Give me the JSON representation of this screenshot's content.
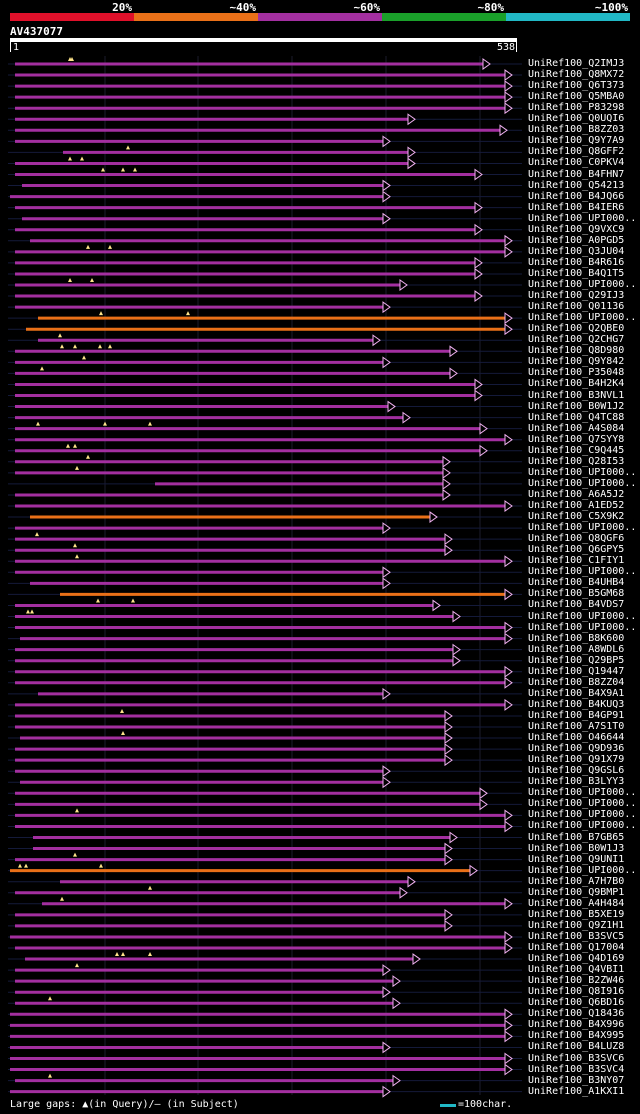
{
  "legend": {
    "labels": [
      "20%",
      "~40%",
      "~60%",
      "~80%",
      "~100%"
    ],
    "colors": [
      "#e0102a",
      "#e97018",
      "#a32fa0",
      "#1aa02a",
      "#21b8c5"
    ]
  },
  "query": {
    "name": "AV437077",
    "start": "1",
    "end": "538"
  },
  "hits": [
    {
      "id": "UniRef100_Q2IMJ3",
      "color": "purple",
      "start": 15,
      "end": 490,
      "gaps": [
        70,
        72
      ]
    },
    {
      "id": "UniRef100_Q8MX72",
      "color": "purple",
      "start": 15,
      "end": 512,
      "gaps": []
    },
    {
      "id": "UniRef100_Q6T373",
      "color": "purple",
      "start": 15,
      "end": 512,
      "gaps": []
    },
    {
      "id": "UniRef100_Q5MBA0",
      "color": "purple",
      "start": 15,
      "end": 512,
      "gaps": []
    },
    {
      "id": "UniRef100_P83298",
      "color": "purple",
      "start": 15,
      "end": 512,
      "gaps": []
    },
    {
      "id": "UniRef100_Q0UQI6",
      "color": "purple",
      "start": 15,
      "end": 415,
      "gaps": []
    },
    {
      "id": "UniRef100_B8ZZ03",
      "color": "purple",
      "start": 15,
      "end": 507,
      "gaps": []
    },
    {
      "id": "UniRef100_Q9Y7A9",
      "color": "purple",
      "start": 15,
      "end": 390,
      "gaps": []
    },
    {
      "id": "UniRef100_Q8GFF2",
      "color": "purple",
      "start": 63,
      "end": 415,
      "gaps": [
        128
      ]
    },
    {
      "id": "UniRef100_C0PKV4",
      "color": "purple",
      "start": 15,
      "end": 415,
      "gaps": [
        70,
        82
      ]
    },
    {
      "id": "UniRef100_B4FHN7",
      "color": "purple",
      "start": 15,
      "end": 482,
      "gaps": [
        103,
        123,
        135
      ]
    },
    {
      "id": "UniRef100_Q54213",
      "color": "purple",
      "start": 22,
      "end": 390,
      "gaps": []
    },
    {
      "id": "UniRef100_B4JQ66",
      "color": "purple",
      "start": 10,
      "end": 390,
      "gaps": []
    },
    {
      "id": "UniRef100_B4IER6",
      "color": "purple",
      "start": 15,
      "end": 482,
      "gaps": []
    },
    {
      "id": "UniRef100_UPI000..",
      "color": "purple",
      "start": 22,
      "end": 390,
      "gaps": []
    },
    {
      "id": "UniRef100_Q9VXC9",
      "color": "purple",
      "start": 15,
      "end": 482,
      "gaps": []
    },
    {
      "id": "UniRef100_A0PGD5",
      "color": "purple",
      "start": 30,
      "end": 512,
      "gaps": []
    },
    {
      "id": "UniRef100_Q3JU04",
      "color": "purple",
      "start": 15,
      "end": 512,
      "gaps": [
        88,
        110
      ]
    },
    {
      "id": "UniRef100_B4R616",
      "color": "purple",
      "start": 15,
      "end": 482,
      "gaps": []
    },
    {
      "id": "UniRef100_B4Q1T5",
      "color": "purple",
      "start": 15,
      "end": 482,
      "gaps": []
    },
    {
      "id": "UniRef100_UPI000..",
      "color": "purple",
      "start": 15,
      "end": 407,
      "gaps": [
        70,
        92
      ]
    },
    {
      "id": "UniRef100_Q29IJ3",
      "color": "purple",
      "start": 15,
      "end": 482,
      "gaps": []
    },
    {
      "id": "UniRef100_Q01136",
      "color": "purple",
      "start": 15,
      "end": 390,
      "gaps": []
    },
    {
      "id": "UniRef100_UPI000..",
      "color": "orange",
      "start": 38,
      "end": 512,
      "gaps": [
        101,
        188
      ]
    },
    {
      "id": "UniRef100_Q2QBE0",
      "color": "orange",
      "start": 26,
      "end": 512,
      "gaps": []
    },
    {
      "id": "UniRef100_Q2CHG7",
      "color": "purple",
      "start": 38,
      "end": 380,
      "gaps": [
        60
      ]
    },
    {
      "id": "UniRef100_Q8D980",
      "color": "purple",
      "start": 15,
      "end": 457,
      "gaps": [
        62,
        75,
        100,
        110
      ]
    },
    {
      "id": "UniRef100_Q9Y842",
      "color": "purple",
      "start": 15,
      "end": 390,
      "gaps": [
        84
      ]
    },
    {
      "id": "UniRef100_P35048",
      "color": "purple",
      "start": 15,
      "end": 457,
      "gaps": [
        42
      ]
    },
    {
      "id": "UniRef100_B4H2K4",
      "color": "purple",
      "start": 15,
      "end": 482,
      "gaps": []
    },
    {
      "id": "UniRef100_B3NVL1",
      "color": "purple",
      "start": 15,
      "end": 482,
      "gaps": []
    },
    {
      "id": "UniRef100_B0W1J2",
      "color": "purple",
      "start": 15,
      "end": 395,
      "gaps": []
    },
    {
      "id": "UniRef100_Q4TC88",
      "color": "purple",
      "start": 15,
      "end": 410,
      "gaps": []
    },
    {
      "id": "UniRef100_A4S084",
      "color": "purple",
      "start": 15,
      "end": 487,
      "gaps": [
        38,
        105,
        150
      ]
    },
    {
      "id": "UniRef100_Q7SYY8",
      "color": "purple",
      "start": 15,
      "end": 512,
      "gaps": []
    },
    {
      "id": "UniRef100_C9Q445",
      "color": "purple",
      "start": 15,
      "end": 487,
      "gaps": [
        68,
        75
      ]
    },
    {
      "id": "UniRef100_Q28I53",
      "color": "purple",
      "start": 15,
      "end": 450,
      "gaps": [
        88
      ]
    },
    {
      "id": "UniRef100_UPI000..",
      "color": "purple",
      "start": 15,
      "end": 450,
      "gaps": [
        77
      ]
    },
    {
      "id": "UniRef100_UPI000..",
      "color": "purple",
      "start": 155,
      "end": 450,
      "gaps": []
    },
    {
      "id": "UniRef100_A6A5J2",
      "color": "purple",
      "start": 15,
      "end": 450,
      "gaps": []
    },
    {
      "id": "UniRef100_A1ED52",
      "color": "purple",
      "start": 15,
      "end": 512,
      "gaps": []
    },
    {
      "id": "UniRef100_C5X9K2",
      "color": "orange",
      "start": 30,
      "end": 437,
      "gaps": []
    },
    {
      "id": "UniRef100_UPI000..",
      "color": "purple",
      "start": 15,
      "end": 390,
      "gaps": []
    },
    {
      "id": "UniRef100_Q8QGF6",
      "color": "purple",
      "start": 15,
      "end": 452,
      "gaps": [
        37
      ]
    },
    {
      "id": "UniRef100_Q6GPY5",
      "color": "purple",
      "start": 15,
      "end": 452,
      "gaps": [
        75
      ]
    },
    {
      "id": "UniRef100_C1FIY1",
      "color": "purple",
      "start": 15,
      "end": 512,
      "gaps": [
        77
      ]
    },
    {
      "id": "UniRef100_UPI000..",
      "color": "purple",
      "start": 15,
      "end": 390,
      "gaps": []
    },
    {
      "id": "UniRef100_B4UHB4",
      "color": "purple",
      "start": 30,
      "end": 390,
      "gaps": []
    },
    {
      "id": "UniRef100_B5GM68",
      "color": "orange",
      "start": 60,
      "end": 512,
      "gaps": []
    },
    {
      "id": "UniRef100_B4VDS7",
      "color": "purple",
      "start": 15,
      "end": 440,
      "gaps": [
        98,
        133
      ]
    },
    {
      "id": "UniRef100_UPI000..",
      "color": "purple",
      "start": 15,
      "end": 460,
      "gaps": [
        28,
        32
      ]
    },
    {
      "id": "UniRef100_UPI000..",
      "color": "purple",
      "start": 15,
      "end": 512,
      "gaps": []
    },
    {
      "id": "UniRef100_B8K600",
      "color": "purple",
      "start": 20,
      "end": 512,
      "gaps": []
    },
    {
      "id": "UniRef100_A8WDL6",
      "color": "purple",
      "start": 15,
      "end": 460,
      "gaps": []
    },
    {
      "id": "UniRef100_Q29BP5",
      "color": "purple",
      "start": 15,
      "end": 460,
      "gaps": []
    },
    {
      "id": "UniRef100_Q19447",
      "color": "purple",
      "start": 15,
      "end": 512,
      "gaps": []
    },
    {
      "id": "UniRef100_B8ZZ04",
      "color": "purple",
      "start": 15,
      "end": 512,
      "gaps": []
    },
    {
      "id": "UniRef100_B4X9A1",
      "color": "purple",
      "start": 38,
      "end": 390,
      "gaps": []
    },
    {
      "id": "UniRef100_B4KUQ3",
      "color": "purple",
      "start": 15,
      "end": 512,
      "gaps": []
    },
    {
      "id": "UniRef100_B4GP91",
      "color": "purple",
      "start": 15,
      "end": 452,
      "gaps": [
        122
      ]
    },
    {
      "id": "UniRef100_A7S1T0",
      "color": "purple",
      "start": 15,
      "end": 452,
      "gaps": []
    },
    {
      "id": "UniRef100_O46644",
      "color": "purple",
      "start": 20,
      "end": 452,
      "gaps": [
        123
      ]
    },
    {
      "id": "UniRef100_Q9D936",
      "color": "purple",
      "start": 15,
      "end": 452,
      "gaps": []
    },
    {
      "id": "UniRef100_Q91X79",
      "color": "purple",
      "start": 15,
      "end": 452,
      "gaps": []
    },
    {
      "id": "UniRef100_Q9GSL6",
      "color": "purple",
      "start": 15,
      "end": 390,
      "gaps": []
    },
    {
      "id": "UniRef100_B3LYY3",
      "color": "purple",
      "start": 20,
      "end": 390,
      "gaps": []
    },
    {
      "id": "UniRef100_UPI000..",
      "color": "purple",
      "start": 15,
      "end": 487,
      "gaps": []
    },
    {
      "id": "UniRef100_UPI000..",
      "color": "purple",
      "start": 15,
      "end": 487,
      "gaps": []
    },
    {
      "id": "UniRef100_UPI000..",
      "color": "purple",
      "start": 15,
      "end": 512,
      "gaps": [
        77
      ]
    },
    {
      "id": "UniRef100_UPI000..",
      "color": "purple",
      "start": 15,
      "end": 512,
      "gaps": []
    },
    {
      "id": "UniRef100_B7GB65",
      "color": "purple",
      "start": 33,
      "end": 457,
      "gaps": []
    },
    {
      "id": "UniRef100_B0W1J3",
      "color": "purple",
      "start": 33,
      "end": 452,
      "gaps": []
    },
    {
      "id": "UniRef100_Q9UNI1",
      "color": "purple",
      "start": 15,
      "end": 452,
      "gaps": [
        75
      ]
    },
    {
      "id": "UniRef100_UPI000..",
      "color": "orange",
      "start": 10,
      "end": 477,
      "gaps": [
        20,
        26,
        101
      ]
    },
    {
      "id": "UniRef100_A7H7B0",
      "color": "purple",
      "start": 60,
      "end": 415,
      "gaps": []
    },
    {
      "id": "UniRef100_Q9BMP1",
      "color": "purple",
      "start": 15,
      "end": 407,
      "gaps": [
        150
      ]
    },
    {
      "id": "UniRef100_A4H484",
      "color": "purple",
      "start": 42,
      "end": 512,
      "gaps": [
        62
      ]
    },
    {
      "id": "UniRef100_B5XE19",
      "color": "purple",
      "start": 15,
      "end": 452,
      "gaps": []
    },
    {
      "id": "UniRef100_Q9Z1H1",
      "color": "purple",
      "start": 15,
      "end": 452,
      "gaps": []
    },
    {
      "id": "UniRef100_B3SVC5",
      "color": "purple",
      "start": 10,
      "end": 512,
      "gaps": []
    },
    {
      "id": "UniRef100_Q17004",
      "color": "purple",
      "start": 15,
      "end": 512,
      "gaps": []
    },
    {
      "id": "UniRef100_Q4D169",
      "color": "purple",
      "start": 25,
      "end": 420,
      "gaps": [
        117,
        123,
        150
      ]
    },
    {
      "id": "UniRef100_Q4VBI1",
      "color": "purple",
      "start": 15,
      "end": 390,
      "gaps": [
        77
      ]
    },
    {
      "id": "UniRef100_B2ZW46",
      "color": "purple",
      "start": 15,
      "end": 400,
      "gaps": []
    },
    {
      "id": "UniRef100_Q8I916",
      "color": "purple",
      "start": 15,
      "end": 390,
      "gaps": []
    },
    {
      "id": "UniRef100_Q6BD16",
      "color": "purple",
      "start": 15,
      "end": 400,
      "gaps": [
        50
      ]
    },
    {
      "id": "UniRef100_Q18436",
      "color": "purple",
      "start": 10,
      "end": 512,
      "gaps": []
    },
    {
      "id": "UniRef100_B4X996",
      "color": "purple",
      "start": 10,
      "end": 512,
      "gaps": []
    },
    {
      "id": "UniRef100_B4X995",
      "color": "purple",
      "start": 10,
      "end": 512,
      "gaps": []
    },
    {
      "id": "UniRef100_B4LUZ8",
      "color": "purple",
      "start": 10,
      "end": 390,
      "gaps": []
    },
    {
      "id": "UniRef100_B3SVC6",
      "color": "purple",
      "start": 10,
      "end": 512,
      "gaps": []
    },
    {
      "id": "UniRef100_B3SVC4",
      "color": "purple",
      "start": 10,
      "end": 512,
      "gaps": []
    },
    {
      "id": "UniRef100_B3NY07",
      "color": "purple",
      "start": 15,
      "end": 400,
      "gaps": [
        50
      ]
    },
    {
      "id": "UniRef100_A1KXI1",
      "color": "purple",
      "start": 10,
      "end": 390,
      "gaps": []
    }
  ],
  "hit_colors": {
    "purple": "#a32fa0",
    "orange": "#e97018"
  },
  "footer": {
    "gaps_note": "Large gaps: ▲(in Query)/– (in Subject)",
    "scale_note": "=100char."
  }
}
